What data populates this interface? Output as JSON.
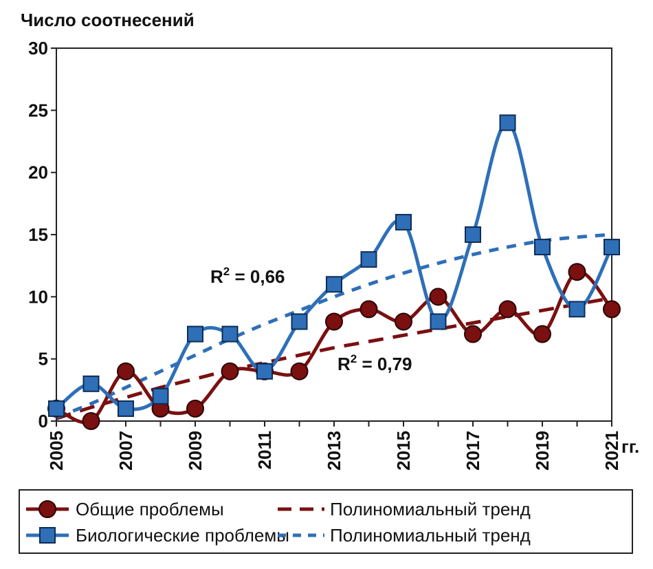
{
  "chart_data": {
    "type": "line",
    "ylabel": "Число соотнесений",
    "x_unit_label": "гг.",
    "x": [
      2005,
      2006,
      2007,
      2008,
      2009,
      2010,
      2011,
      2012,
      2013,
      2014,
      2015,
      2016,
      2017,
      2018,
      2019,
      2020,
      2021
    ],
    "x_tick_labels": [
      "2005",
      "2007",
      "2009",
      "2011",
      "2013",
      "2015",
      "2017",
      "2019",
      "2021"
    ],
    "ylim": [
      0,
      30
    ],
    "y_ticks": [
      0,
      5,
      10,
      15,
      20,
      25,
      30
    ],
    "grid": false,
    "series": [
      {
        "name": "Общие проблемы",
        "color": "#7a1010",
        "marker": "circle",
        "values": [
          1,
          0,
          4,
          1,
          1,
          4,
          4,
          4,
          8,
          9,
          8,
          10,
          7,
          9,
          7,
          12,
          9
        ]
      },
      {
        "name": "Биологические проблемы",
        "color": "#2e6fb8",
        "marker": "square",
        "values": [
          1,
          3,
          1,
          2,
          7,
          7,
          4,
          8,
          11,
          13,
          16,
          8,
          15,
          24,
          14,
          9,
          14
        ]
      }
    ],
    "trendlines": [
      {
        "name": "Полиномиальный тренд",
        "of_series": "Общие проблемы",
        "color": "#7a1010",
        "r2_label": "0,79",
        "values": [
          0.2,
          1.1,
          1.9,
          2.7,
          3.4,
          4.1,
          4.7,
          5.3,
          5.9,
          6.4,
          6.9,
          7.4,
          7.9,
          8.4,
          8.9,
          9.4,
          9.9
        ]
      },
      {
        "name": "Полиномиальный тренд",
        "of_series": "Биологические проблемы",
        "color": "#2e6fb8",
        "r2_label": "0,66",
        "values": [
          0.3,
          1.4,
          2.7,
          4.0,
          5.3,
          6.6,
          7.8,
          8.9,
          10.0,
          11.0,
          11.9,
          12.7,
          13.4,
          14.0,
          14.5,
          14.8,
          15.0
        ]
      }
    ],
    "legend": {
      "position": "bottom",
      "items": [
        {
          "label": "Общие проблемы",
          "kind": "series",
          "color": "#7a1010",
          "marker": "circle"
        },
        {
          "label": "Полиномиальный тренд",
          "kind": "trend",
          "color": "#7a1010"
        },
        {
          "label": "Биологические проблемы",
          "kind": "series",
          "color": "#2e6fb8",
          "marker": "square"
        },
        {
          "label": "Полиномиальный тренд",
          "kind": "trend",
          "color": "#2e6fb8"
        }
      ]
    }
  }
}
